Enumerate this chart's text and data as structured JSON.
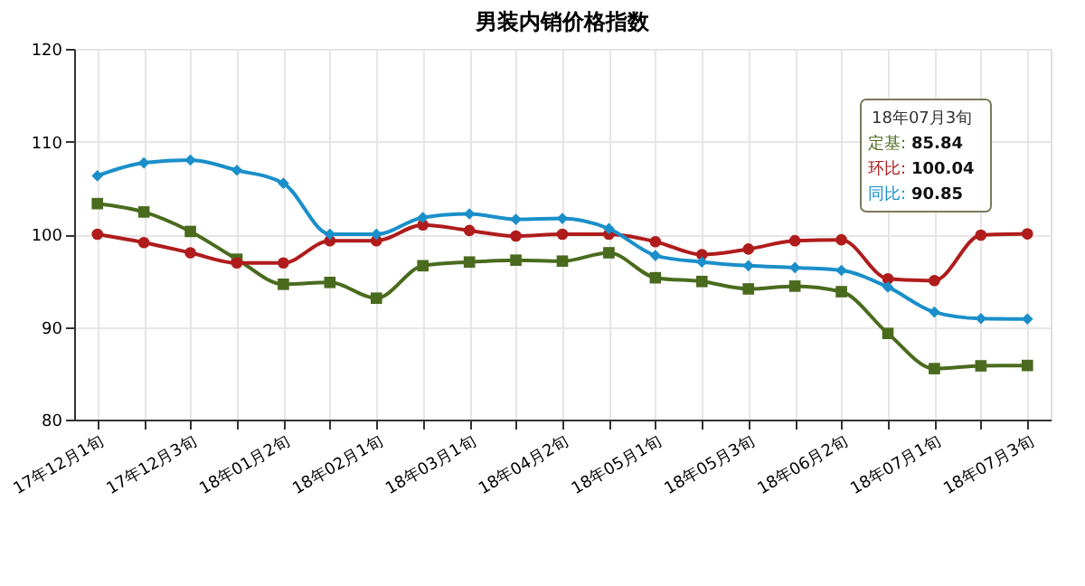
{
  "chart_data": {
    "type": "line",
    "title": "男装内销价格指数",
    "categories": [
      "17年12月1旬",
      null,
      "17年12月3旬",
      null,
      "18年01月2旬",
      null,
      "18年02月1旬",
      null,
      "18年03月1旬",
      null,
      "18年04月2旬",
      null,
      "18年05月1旬",
      null,
      "18年05月3旬",
      null,
      "18年06月2旬",
      null,
      "18年07月1旬",
      null,
      "18年07月3旬"
    ],
    "series": [
      {
        "color": "#4a6b1e",
        "marker": "square",
        "values": [
          103.3,
          102.4,
          100.3,
          97.3,
          94.6,
          94.8,
          93.1,
          96.6,
          97.0,
          97.2,
          97.1,
          98.0,
          95.3,
          94.9,
          94.1,
          94.4,
          93.8,
          89.3,
          85.5,
          85.8,
          85.84
        ]
      },
      {
        "color": "#b01c1c",
        "marker": "circle",
        "values": [
          100.0,
          99.1,
          98.0,
          96.9,
          96.9,
          99.3,
          99.3,
          101.0,
          100.4,
          99.8,
          100.0,
          100.0,
          99.2,
          97.8,
          98.4,
          99.3,
          99.4,
          95.2,
          95.0,
          99.9,
          100.04
        ]
      },
      {
        "color": "#1a8fc9",
        "marker": "diamond",
        "values": [
          106.3,
          107.7,
          108.0,
          106.9,
          105.5,
          100.0,
          100.0,
          101.8,
          102.2,
          101.6,
          101.7,
          100.6,
          97.7,
          97.0,
          96.6,
          96.4,
          96.1,
          94.3,
          91.6,
          90.9,
          90.85
        ]
      }
    ],
    "annotations": [
      "18年07月3旬",
      "定基: 85.84",
      "环比: 100.04",
      "同比: 90.85"
    ],
    "ylim": [
      80,
      120
    ],
    "yticks": [
      80,
      90,
      100,
      110,
      120
    ],
    "grid": true
  }
}
